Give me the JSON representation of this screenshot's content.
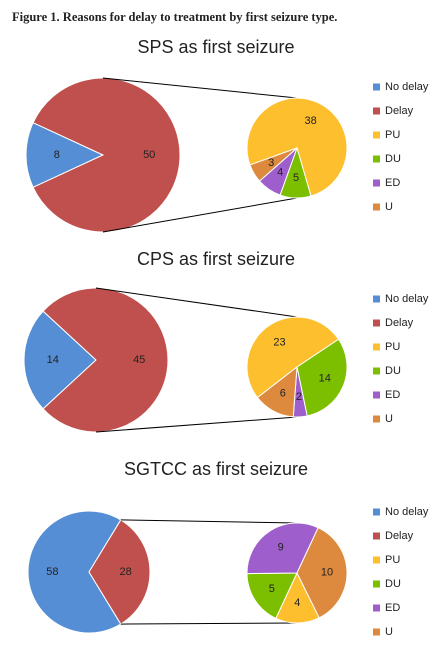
{
  "caption": "Figure 1. Reasons for delay to treatment by first seizure type.",
  "chart_data": [
    {
      "type": "pie",
      "title": "SPS as first seizure",
      "categories": [
        "No delay",
        "Delay"
      ],
      "values": [
        8,
        50
      ],
      "colors": [
        "#558ed5",
        "#c0504d"
      ],
      "breakdown": {
        "categories": [
          "PU",
          "DU",
          "ED",
          "U"
        ],
        "values": [
          38,
          5,
          4,
          3
        ],
        "colors": [
          "#fdbf2d",
          "#7cbf00",
          "#9e5ecb",
          "#de8a3e"
        ]
      }
    },
    {
      "type": "pie",
      "title": "CPS as first seizure",
      "categories": [
        "No delay",
        "Delay"
      ],
      "values": [
        14,
        45
      ],
      "colors": [
        "#558ed5",
        "#c0504d"
      ],
      "breakdown": {
        "categories": [
          "PU",
          "DU",
          "ED",
          "U"
        ],
        "values": [
          23,
          14,
          2,
          6
        ],
        "colors": [
          "#fdbf2d",
          "#7cbf00",
          "#9e5ecb",
          "#de8a3e"
        ]
      }
    },
    {
      "type": "pie",
      "title": "SGTCC as first seizure",
      "categories": [
        "No delay",
        "Delay"
      ],
      "values": [
        58,
        28
      ],
      "colors": [
        "#558ed5",
        "#c0504d"
      ],
      "breakdown": {
        "categories": [
          "PU",
          "DU",
          "ED",
          "U"
        ],
        "values": [
          4,
          5,
          9,
          10
        ],
        "colors": [
          "#fdbf2d",
          "#7cbf00",
          "#9e5ecb",
          "#de8a3e"
        ]
      }
    }
  ]
}
